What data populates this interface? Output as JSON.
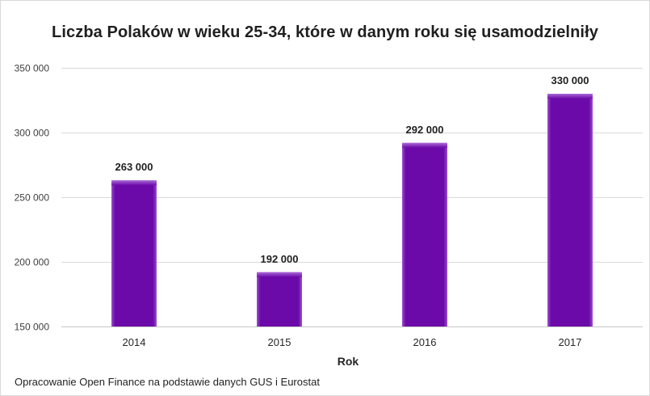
{
  "chart_data": {
    "type": "bar",
    "title": "Liczba Polaków w wieku 25-34, które w danym roku się usamodzielniły",
    "xlabel": "Rok",
    "ylabel": "",
    "categories": [
      "2014",
      "2015",
      "2016",
      "2017"
    ],
    "values": [
      263000,
      192000,
      292000,
      330000
    ],
    "data_labels": [
      "263 000",
      "192 000",
      "292 000",
      "330 000"
    ],
    "ylim": [
      150000,
      350000
    ],
    "yticks": [
      150000,
      200000,
      250000,
      300000,
      350000
    ],
    "ytick_labels": [
      "150 000",
      "200 000",
      "250 000",
      "300 000",
      "350 000"
    ],
    "grid": true,
    "legend": "none",
    "bar_color": "#6a0aa5",
    "bar_edge_color": "#a25bd3"
  },
  "source_note": "Opracowanie Open Finance na podstawie danych GUS i Eurostat"
}
